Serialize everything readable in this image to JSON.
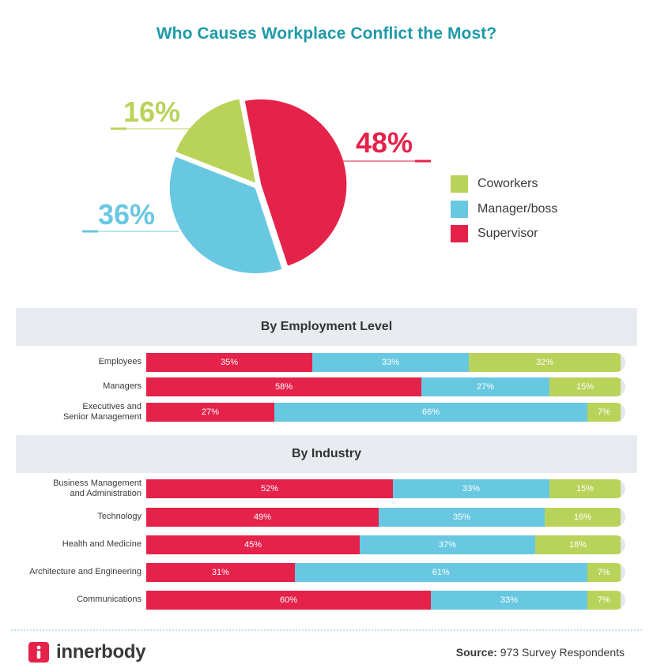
{
  "chart_data": [
    {
      "type": "pie",
      "title": "Who Causes Workplace Conflict the Most?",
      "slices": [
        {
          "label": "Supervisor",
          "value": 48,
          "display": "48%",
          "color": "#e5224a"
        },
        {
          "label": "Manager/boss",
          "value": 36,
          "display": "36%",
          "color": "#69c8e1"
        },
        {
          "label": "Coworkers",
          "value": 16,
          "display": "16%",
          "color": "#b9d35a"
        }
      ],
      "legend": [
        "Coworkers",
        "Manager/boss",
        "Supervisor"
      ]
    },
    {
      "type": "bar",
      "orientation": "horizontal",
      "stacked": true,
      "title": "By Employment Level",
      "categories": [
        "Employees",
        "Managers",
        "Executives and Senior Management"
      ],
      "series": [
        {
          "name": "Supervisor",
          "color": "#e5224a",
          "values": [
            35,
            58,
            27
          ]
        },
        {
          "name": "Manager/boss",
          "color": "#69c8e1",
          "values": [
            33,
            27,
            66
          ]
        },
        {
          "name": "Coworkers",
          "color": "#b9d35a",
          "values": [
            32,
            15,
            7
          ]
        }
      ]
    },
    {
      "type": "bar",
      "orientation": "horizontal",
      "stacked": true,
      "title": "By Industry",
      "categories": [
        "Business Management and Administration",
        "Technology",
        "Health and Medicine",
        "Architecture and Engineering",
        "Communications"
      ],
      "series": [
        {
          "name": "Supervisor",
          "color": "#e5224a",
          "values": [
            52,
            49,
            45,
            31,
            60
          ]
        },
        {
          "name": "Manager/boss",
          "color": "#69c8e1",
          "values": [
            33,
            35,
            37,
            61,
            33
          ]
        },
        {
          "name": "Coworkers",
          "color": "#b9d35a",
          "values": [
            15,
            16,
            18,
            7,
            7
          ]
        }
      ]
    }
  ],
  "sections": {
    "employment": {
      "header": "By Employment Level",
      "rows": [
        {
          "label_lines": [
            "Employees"
          ],
          "values": [
            35,
            33,
            32
          ],
          "labels": [
            "35%",
            "33%",
            "32%"
          ]
        },
        {
          "label_lines": [
            "Managers"
          ],
          "values": [
            58,
            27,
            15
          ],
          "labels": [
            "58%",
            "27%",
            "15%"
          ]
        },
        {
          "label_lines": [
            "Executives and",
            "Senior Management"
          ],
          "values": [
            27,
            66,
            7
          ],
          "labels": [
            "27%",
            "66%",
            "7%"
          ]
        }
      ]
    },
    "industry": {
      "header": "By Industry",
      "rows": [
        {
          "label_lines": [
            "Business Management",
            "and Administration"
          ],
          "values": [
            52,
            33,
            15
          ],
          "labels": [
            "52%",
            "33%",
            "15%"
          ]
        },
        {
          "label_lines": [
            "Technology"
          ],
          "values": [
            49,
            35,
            16
          ],
          "labels": [
            "49%",
            "35%",
            "16%"
          ]
        },
        {
          "label_lines": [
            "Health and Medicine"
          ],
          "values": [
            45,
            37,
            18
          ],
          "labels": [
            "45%",
            "37%",
            "18%"
          ]
        },
        {
          "label_lines": [
            "Architecture and Engineering"
          ],
          "values": [
            31,
            61,
            7
          ],
          "labels": [
            "31%",
            "61%",
            "7%"
          ]
        },
        {
          "label_lines": [
            "Communications"
          ],
          "values": [
            60,
            33,
            7
          ],
          "labels": [
            "60%",
            "33%",
            "7%"
          ]
        }
      ]
    }
  },
  "colors": {
    "supervisor": "#e5224a",
    "manager": "#69c8e1",
    "coworkers": "#b9d35a",
    "title": "#1f9aa8",
    "track": "#e4e7ea"
  },
  "footer": {
    "brand": "innerbody",
    "brand_icon": "info-icon",
    "source_label": "Source:",
    "source_text": "973 Survey Respondents"
  }
}
